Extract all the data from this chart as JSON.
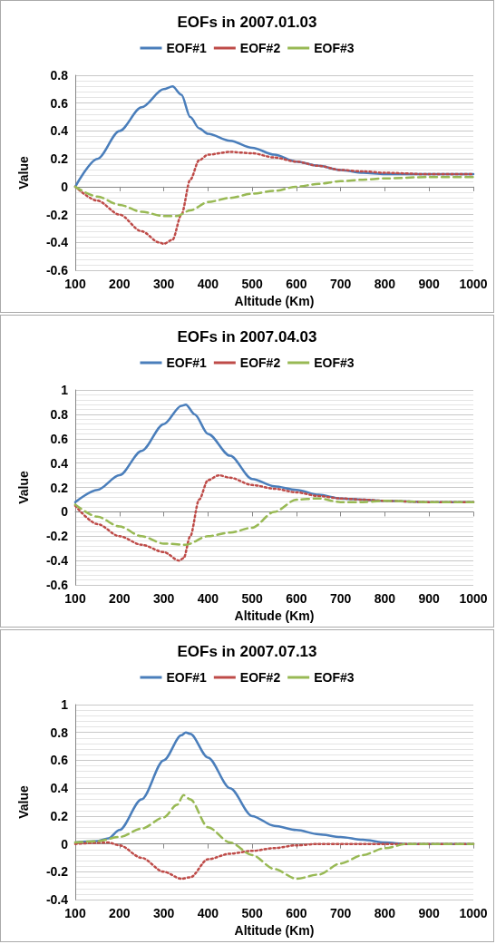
{
  "chart_data": [
    {
      "type": "line",
      "title": "EOFs in 2007.01.03",
      "xlabel": "Altitude (Km)",
      "ylabel": "Value",
      "xlim": [
        100,
        1000
      ],
      "xticks": [
        100,
        200,
        300,
        400,
        500,
        600,
        700,
        800,
        900,
        1000
      ],
      "ylim": [
        -0.6,
        0.8
      ],
      "yticks": [
        -0.6,
        -0.4,
        -0.2,
        0,
        0.2,
        0.4,
        0.6,
        0.8
      ],
      "grid": "y",
      "legend": "top",
      "marker": "none",
      "series": [
        {
          "name": "EOF#1",
          "color": "#4a7ebb",
          "line_style": "solid",
          "x": [
            100,
            150,
            200,
            250,
            300,
            320,
            340,
            360,
            380,
            400,
            450,
            500,
            550,
            600,
            650,
            700,
            750,
            800,
            900,
            1000
          ],
          "values": [
            0,
            0.2,
            0.4,
            0.57,
            0.7,
            0.72,
            0.66,
            0.5,
            0.42,
            0.38,
            0.33,
            0.28,
            0.23,
            0.18,
            0.15,
            0.12,
            0.1,
            0.09,
            0.09,
            0.09
          ]
        },
        {
          "name": "EOF#2",
          "color": "#be4b48",
          "line_style": "dotted",
          "x": [
            100,
            150,
            200,
            250,
            290,
            300,
            320,
            340,
            360,
            380,
            400,
            450,
            500,
            550,
            600,
            650,
            700,
            750,
            800,
            900,
            1000
          ],
          "values": [
            0,
            -0.1,
            -0.2,
            -0.32,
            -0.4,
            -0.41,
            -0.38,
            -0.2,
            0.05,
            0.19,
            0.23,
            0.25,
            0.24,
            0.21,
            0.18,
            0.15,
            0.12,
            0.11,
            0.1,
            0.09,
            0.09
          ]
        },
        {
          "name": "EOF#3",
          "color": "#98b954",
          "line_style": "dashed",
          "x": [
            100,
            150,
            200,
            250,
            300,
            330,
            360,
            400,
            450,
            500,
            550,
            600,
            650,
            700,
            750,
            800,
            900,
            1000
          ],
          "values": [
            0,
            -0.07,
            -0.13,
            -0.18,
            -0.21,
            -0.21,
            -0.17,
            -0.11,
            -0.08,
            -0.05,
            -0.03,
            0,
            0.02,
            0.04,
            0.05,
            0.06,
            0.07,
            0.07
          ]
        }
      ]
    },
    {
      "type": "line",
      "title": "EOFs in 2007.04.03",
      "xlabel": "Altitude (Km)",
      "ylabel": "Value",
      "xlim": [
        100,
        1000
      ],
      "xticks": [
        100,
        200,
        300,
        400,
        500,
        600,
        700,
        800,
        900,
        1000
      ],
      "ylim": [
        -0.6,
        1
      ],
      "yticks": [
        -0.6,
        -0.4,
        -0.2,
        0,
        0.2,
        0.4,
        0.6,
        0.8,
        1
      ],
      "grid": "y",
      "legend": "top",
      "marker": "none",
      "series": [
        {
          "name": "EOF#1",
          "color": "#4a7ebb",
          "line_style": "solid",
          "x": [
            100,
            150,
            200,
            250,
            300,
            340,
            350,
            370,
            400,
            450,
            500,
            550,
            600,
            650,
            700,
            750,
            800,
            900,
            1000
          ],
          "values": [
            0.08,
            0.18,
            0.3,
            0.5,
            0.72,
            0.87,
            0.88,
            0.8,
            0.64,
            0.46,
            0.27,
            0.21,
            0.18,
            0.14,
            0.11,
            0.1,
            0.09,
            0.08,
            0.08
          ]
        },
        {
          "name": "EOF#2",
          "color": "#be4b48",
          "line_style": "dotted",
          "x": [
            100,
            150,
            200,
            250,
            300,
            335,
            345,
            360,
            380,
            400,
            425,
            450,
            500,
            550,
            600,
            650,
            700,
            750,
            800,
            900,
            1000
          ],
          "values": [
            0.05,
            -0.1,
            -0.2,
            -0.27,
            -0.33,
            -0.4,
            -0.38,
            -0.2,
            0.1,
            0.26,
            0.3,
            0.28,
            0.22,
            0.19,
            0.16,
            0.13,
            0.11,
            0.1,
            0.09,
            0.08,
            0.08
          ]
        },
        {
          "name": "EOF#3",
          "color": "#98b954",
          "line_style": "dashed",
          "x": [
            100,
            150,
            200,
            250,
            300,
            350,
            400,
            450,
            500,
            550,
            600,
            650,
            700,
            750,
            800,
            900,
            1000
          ],
          "values": [
            0.06,
            -0.04,
            -0.12,
            -0.2,
            -0.26,
            -0.27,
            -0.2,
            -0.17,
            -0.13,
            0,
            0.1,
            0.11,
            0.08,
            0.08,
            0.09,
            0.08,
            0.08
          ]
        }
      ]
    },
    {
      "type": "line",
      "title": "EOFs in 2007.07.13",
      "xlabel": "Altitude (Km)",
      "ylabel": "Value",
      "xlim": [
        100,
        1000
      ],
      "xticks": [
        100,
        200,
        300,
        400,
        500,
        600,
        700,
        800,
        900,
        1000
      ],
      "ylim": [
        -0.4,
        1
      ],
      "yticks": [
        -0.4,
        -0.2,
        0,
        0.2,
        0.4,
        0.6,
        0.8,
        1
      ],
      "grid": "y",
      "legend": "top",
      "marker": "none",
      "series": [
        {
          "name": "EOF#1",
          "color": "#4a7ebb",
          "line_style": "solid",
          "x": [
            100,
            150,
            175,
            200,
            250,
            300,
            340,
            350,
            360,
            400,
            450,
            500,
            550,
            600,
            650,
            700,
            750,
            800,
            850,
            1000
          ],
          "values": [
            0.01,
            0.02,
            0.04,
            0.1,
            0.32,
            0.6,
            0.78,
            0.8,
            0.79,
            0.62,
            0.4,
            0.2,
            0.13,
            0.1,
            0.07,
            0.05,
            0.03,
            0.01,
            0,
            0
          ]
        },
        {
          "name": "EOF#2",
          "color": "#be4b48",
          "line_style": "dotted",
          "x": [
            100,
            175,
            200,
            250,
            300,
            340,
            360,
            400,
            450,
            500,
            550,
            600,
            650,
            800,
            1000
          ],
          "values": [
            0,
            0.01,
            -0.01,
            -0.1,
            -0.2,
            -0.25,
            -0.24,
            -0.11,
            -0.07,
            -0.05,
            -0.03,
            -0.01,
            0,
            0,
            0
          ]
        },
        {
          "name": "EOF#3",
          "color": "#98b954",
          "line_style": "dashed",
          "x": [
            100,
            150,
            200,
            250,
            300,
            330,
            345,
            360,
            400,
            450,
            500,
            550,
            600,
            650,
            700,
            750,
            800,
            850,
            1000
          ],
          "values": [
            0.01,
            0.02,
            0.05,
            0.11,
            0.19,
            0.28,
            0.35,
            0.32,
            0.12,
            0.01,
            -0.08,
            -0.18,
            -0.25,
            -0.22,
            -0.14,
            -0.08,
            -0.03,
            0,
            0
          ]
        }
      ]
    }
  ]
}
